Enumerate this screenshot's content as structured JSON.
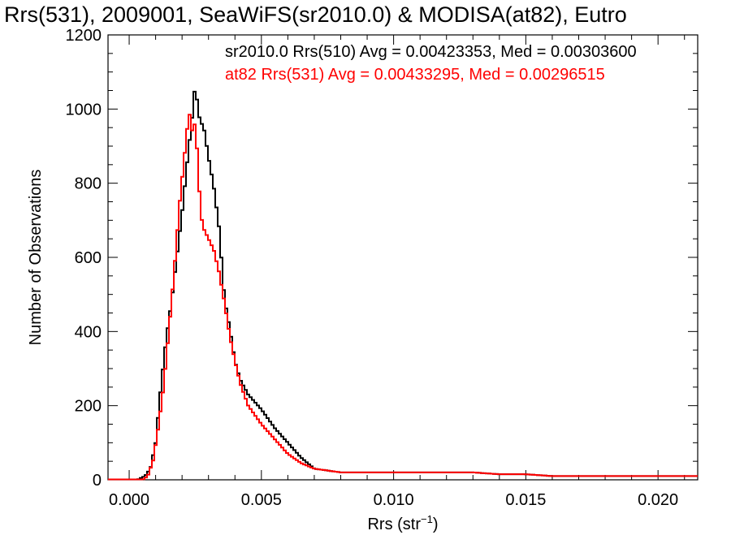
{
  "chart_data": {
    "type": "line",
    "title": "Rrs(531), 2009001, SeaWiFS(sr2010.0) & MODISA(at82), Eutro",
    "xlabel_base": "Rrs (str",
    "xlabel_sup": "−1",
    "xlabel_close": ")",
    "ylabel": "Number of Observations",
    "xlim": [
      -0.0008,
      0.0215
    ],
    "ylim": [
      0,
      1200
    ],
    "x_ticks": [
      {
        "value": 0.0,
        "label": "0.000"
      },
      {
        "value": 0.005,
        "label": "0.005"
      },
      {
        "value": 0.01,
        "label": "0.010"
      },
      {
        "value": 0.015,
        "label": "0.015"
      },
      {
        "value": 0.02,
        "label": "0.020"
      }
    ],
    "y_ticks": [
      {
        "value": 0,
        "label": "0"
      },
      {
        "value": 200,
        "label": "200"
      },
      {
        "value": 400,
        "label": "400"
      },
      {
        "value": 600,
        "label": "600"
      },
      {
        "value": 800,
        "label": "800"
      },
      {
        "value": 1000,
        "label": "1000"
      },
      {
        "value": 1200,
        "label": "1200"
      }
    ],
    "grid": false,
    "legend_position": "top-right",
    "series": [
      {
        "name": "sr2010.0",
        "legend": "sr2010.0 Rrs(510) Avg = 0.00423353, Med = 0.00303600",
        "color": "#000000",
        "x": [
          -0.0008,
          0.0003,
          0.0006,
          0.0008,
          0.001,
          0.0012,
          0.0014,
          0.0016,
          0.0018,
          0.002,
          0.0022,
          0.0024,
          0.0025,
          0.0026,
          0.0027,
          0.0028,
          0.003,
          0.0032,
          0.0034,
          0.0036,
          0.0038,
          0.004,
          0.0042,
          0.0045,
          0.005,
          0.0055,
          0.006,
          0.0065,
          0.007,
          0.008,
          0.009,
          0.01,
          0.011,
          0.012,
          0.013,
          0.014,
          0.015,
          0.016,
          0.017,
          0.018,
          0.019,
          0.02,
          0.0213
        ],
        "y": [
          0,
          0,
          10,
          30,
          100,
          250,
          380,
          480,
          600,
          720,
          860,
          990,
          1070,
          1000,
          960,
          960,
          870,
          790,
          680,
          490,
          410,
          320,
          270,
          230,
          190,
          140,
          100,
          60,
          30,
          20,
          20,
          20,
          20,
          20,
          20,
          15,
          15,
          10,
          10,
          10,
          10,
          10,
          10
        ]
      },
      {
        "name": "at82",
        "legend": "at82 Rrs(531) Avg = 0.00433295, Med = 0.00296515",
        "color": "#ff0000",
        "x": [
          -0.0008,
          0.0005,
          0.0007,
          0.0009,
          0.0011,
          0.0013,
          0.0015,
          0.0017,
          0.0019,
          0.0021,
          0.0022,
          0.0023,
          0.0024,
          0.0025,
          0.0026,
          0.0027,
          0.0028,
          0.003,
          0.0032,
          0.0034,
          0.0036,
          0.0038,
          0.004,
          0.0042,
          0.0045,
          0.005,
          0.0055,
          0.006,
          0.0065,
          0.007,
          0.008,
          0.009,
          0.01,
          0.011,
          0.012,
          0.013,
          0.014,
          0.015,
          0.016,
          0.017,
          0.018,
          0.019,
          0.02,
          0.0213
        ],
        "y": [
          0,
          0,
          10,
          50,
          140,
          250,
          400,
          560,
          740,
          880,
          950,
          990,
          930,
          970,
          850,
          720,
          680,
          650,
          620,
          560,
          480,
          390,
          320,
          260,
          200,
          150,
          110,
          70,
          45,
          30,
          20,
          20,
          20,
          20,
          20,
          20,
          15,
          15,
          10,
          10,
          10,
          10,
          10,
          10
        ]
      }
    ]
  }
}
